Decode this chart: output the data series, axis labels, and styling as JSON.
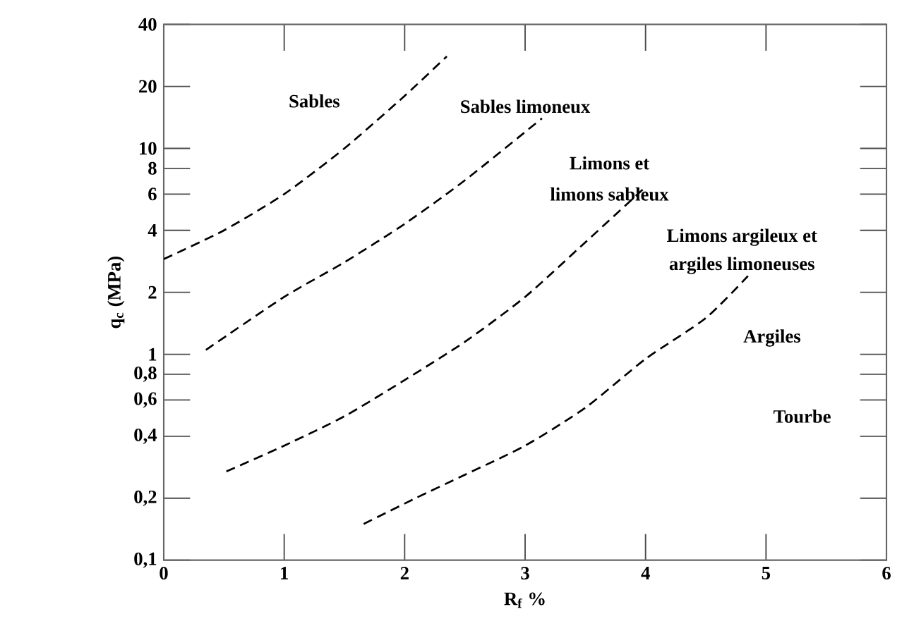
{
  "chart_data": {
    "type": "line",
    "xlabel": "R$_{f}$ %",
    "ylabel": "q$_{c}$ (MPa)",
    "log": "y",
    "xlim": [
      0,
      6
    ],
    "ylim": [
      0.1,
      40
    ],
    "xticks": [
      0,
      1,
      2,
      3,
      4,
      5,
      6
    ],
    "yticks": [
      {
        "value": 0.1,
        "label": "0,1"
      },
      {
        "value": 0.2,
        "label": "0,2"
      },
      {
        "value": 0.4,
        "label": "0,4"
      },
      {
        "value": 0.6,
        "label": "0,6"
      },
      {
        "value": 0.8,
        "label": "0,8"
      },
      1,
      2,
      4,
      6,
      8,
      10,
      20,
      40
    ],
    "grid": false,
    "marker": "none",
    "line_style": "dashed",
    "series": [
      {
        "color": "#000000",
        "x": [
          0,
          0.5,
          1,
          1.5,
          2,
          2.35
        ],
        "values": [
          2.9,
          4,
          6,
          10,
          18,
          28
        ]
      },
      {
        "color": "#000000",
        "x": [
          0.35,
          1,
          1.5,
          2,
          2.5,
          3.14
        ],
        "values": [
          1.05,
          1.9,
          2.8,
          4.3,
          7,
          14
        ]
      },
      {
        "color": "#000000",
        "x": [
          0.52,
          1,
          1.5,
          2,
          2.5,
          3,
          3.5,
          4
        ],
        "values": [
          0.27,
          0.36,
          0.5,
          0.75,
          1.15,
          1.9,
          3.5,
          6.5
        ]
      },
      {
        "color": "#000000",
        "x": [
          1.66,
          2.09,
          2.5,
          3,
          3.5,
          4,
          4.5,
          4.85
        ],
        "values": [
          0.15,
          0.2,
          0.26,
          0.36,
          0.55,
          0.95,
          1.5,
          2.4
        ]
      }
    ],
    "annotations": [
      "Sables",
      "Sables limoneux",
      "Limons et",
      "limons sableux",
      "Limons argileux et",
      "argiles limoneuses",
      "Argiles",
      "Tourbe"
    ]
  }
}
